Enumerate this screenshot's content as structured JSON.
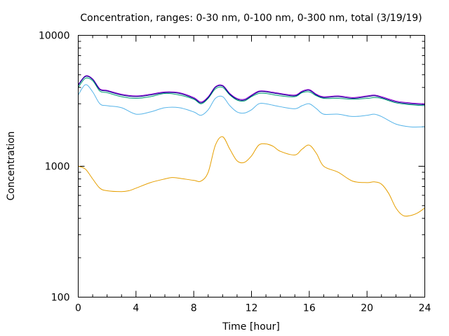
{
  "chart_data": {
    "type": "line",
    "title": "Concentration, ranges: 0-30 nm, 0-100 nm, 0-300 nm, total (3/19/19)",
    "xlabel": "Time [hour]",
    "ylabel": "Concentration",
    "xlim": [
      0,
      24
    ],
    "ylim": [
      100,
      10000
    ],
    "yscale": "log",
    "grid": false,
    "xticks": [
      0,
      4,
      8,
      12,
      16,
      20,
      24
    ],
    "xtick_labels": [
      "0",
      "4",
      "8",
      "12",
      "16",
      "20",
      "24"
    ],
    "yticks": [
      100,
      1000,
      10000
    ],
    "ytick_labels": [
      "100",
      "1000",
      "10000"
    ],
    "series": [
      {
        "color": "#e69f00",
        "x": [
          0,
          0.5,
          1,
          1.5,
          2,
          3,
          3.5,
          4,
          5,
          6,
          6.5,
          7,
          8,
          8.5,
          9,
          9.5,
          10,
          10.5,
          11,
          11.5,
          12,
          12.5,
          13,
          13.5,
          14,
          15,
          15.5,
          16,
          16.5,
          17,
          18,
          19,
          20,
          20.5,
          21,
          21.5,
          22,
          22.5,
          23,
          23.5,
          24
        ],
        "y": [
          1000,
          950,
          800,
          680,
          650,
          640,
          650,
          680,
          750,
          800,
          820,
          810,
          780,
          770,
          900,
          1450,
          1680,
          1350,
          1100,
          1070,
          1200,
          1450,
          1480,
          1420,
          1300,
          1220,
          1350,
          1450,
          1250,
          1000,
          900,
          770,
          750,
          760,
          730,
          620,
          480,
          420,
          420,
          440,
          480
        ]
      },
      {
        "color": "#56b4e9",
        "x": [
          0,
          0.5,
          1,
          1.5,
          2,
          3,
          4,
          5,
          6,
          7,
          8,
          8.5,
          9,
          9.5,
          10,
          10.5,
          11,
          11.5,
          12,
          12.5,
          13,
          14,
          15,
          15.5,
          16,
          16.5,
          17,
          18,
          19,
          20,
          20.5,
          21,
          22,
          23,
          24
        ],
        "y": [
          3500,
          4200,
          3700,
          3000,
          2900,
          2800,
          2500,
          2600,
          2800,
          2800,
          2600,
          2450,
          2700,
          3300,
          3400,
          2900,
          2600,
          2550,
          2700,
          3000,
          3000,
          2850,
          2750,
          2900,
          3000,
          2750,
          2500,
          2500,
          2400,
          2450,
          2500,
          2400,
          2100,
          2000,
          2000
        ]
      },
      {
        "color": "#009e73",
        "x": [
          0,
          0.5,
          1,
          1.5,
          2,
          3,
          4,
          5,
          6,
          7,
          8,
          8.5,
          9,
          9.5,
          10,
          10.5,
          11,
          11.5,
          12,
          12.5,
          13,
          14,
          15,
          15.5,
          16,
          16.5,
          17,
          18,
          19,
          20,
          20.5,
          21,
          22,
          23,
          24
        ],
        "y": [
          4000,
          4700,
          4500,
          3750,
          3650,
          3400,
          3300,
          3400,
          3600,
          3500,
          3250,
          3000,
          3300,
          3900,
          4000,
          3500,
          3200,
          3150,
          3400,
          3600,
          3600,
          3450,
          3400,
          3650,
          3700,
          3450,
          3300,
          3300,
          3250,
          3300,
          3350,
          3300,
          3050,
          2950,
          2900
        ]
      },
      {
        "color": "#9400d3",
        "x": [
          0,
          0.5,
          1,
          1.5,
          2,
          3,
          4,
          5,
          6,
          7,
          8,
          8.5,
          9,
          9.5,
          10,
          10.5,
          11,
          11.5,
          12,
          12.5,
          13,
          14,
          15,
          15.5,
          16,
          16.5,
          17,
          18,
          19,
          20,
          20.5,
          21,
          22,
          23,
          24
        ],
        "y": [
          4200,
          4900,
          4650,
          3900,
          3800,
          3550,
          3450,
          3550,
          3700,
          3650,
          3350,
          3100,
          3400,
          4050,
          4150,
          3600,
          3300,
          3250,
          3500,
          3750,
          3750,
          3600,
          3500,
          3750,
          3850,
          3550,
          3400,
          3450,
          3350,
          3450,
          3500,
          3400,
          3150,
          3050,
          3000
        ]
      },
      {
        "color": "#00008b",
        "x": [
          0,
          0.5,
          1,
          1.5,
          2,
          3,
          4,
          5,
          6,
          7,
          8,
          8.5,
          9,
          9.5,
          10,
          10.5,
          11,
          11.5,
          12,
          12.5,
          13,
          14,
          15,
          15.5,
          16,
          16.5,
          17,
          18,
          19,
          20,
          20.5,
          21,
          22,
          23,
          24
        ],
        "y": [
          4150,
          4850,
          4600,
          3850,
          3750,
          3500,
          3400,
          3500,
          3650,
          3600,
          3300,
          3050,
          3350,
          4000,
          4100,
          3550,
          3250,
          3200,
          3450,
          3700,
          3700,
          3550,
          3450,
          3700,
          3800,
          3500,
          3350,
          3400,
          3300,
          3400,
          3450,
          3350,
          3100,
          3000,
          2950
        ]
      }
    ]
  }
}
